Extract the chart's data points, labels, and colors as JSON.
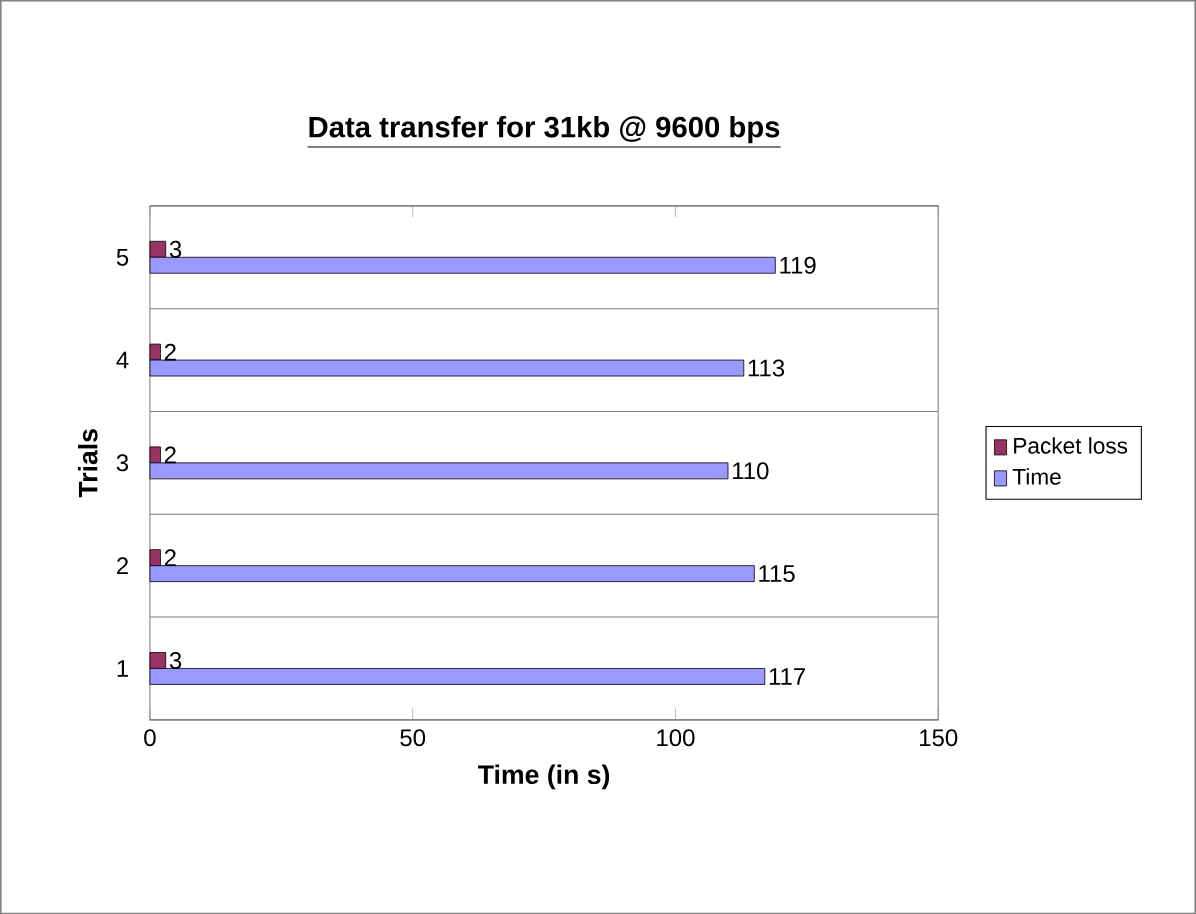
{
  "chart_data": {
    "type": "bar",
    "orientation": "horizontal",
    "title": "Data transfer for 31kb @ 9600 bps",
    "xlabel": "Time (in s)",
    "ylabel": "Trials",
    "categories": [
      "5",
      "4",
      "3",
      "2",
      "1"
    ],
    "series": [
      {
        "name": "Packet loss",
        "color": "#993366",
        "values": [
          3,
          2,
          2,
          2,
          3
        ]
      },
      {
        "name": "Time",
        "color": "#9999ff",
        "values": [
          119,
          113,
          110,
          115,
          117
        ]
      }
    ],
    "xlim": [
      0,
      150
    ],
    "xticks": [
      0,
      50,
      100,
      150
    ],
    "grid": "y",
    "legend": "right",
    "data_labels": true
  }
}
